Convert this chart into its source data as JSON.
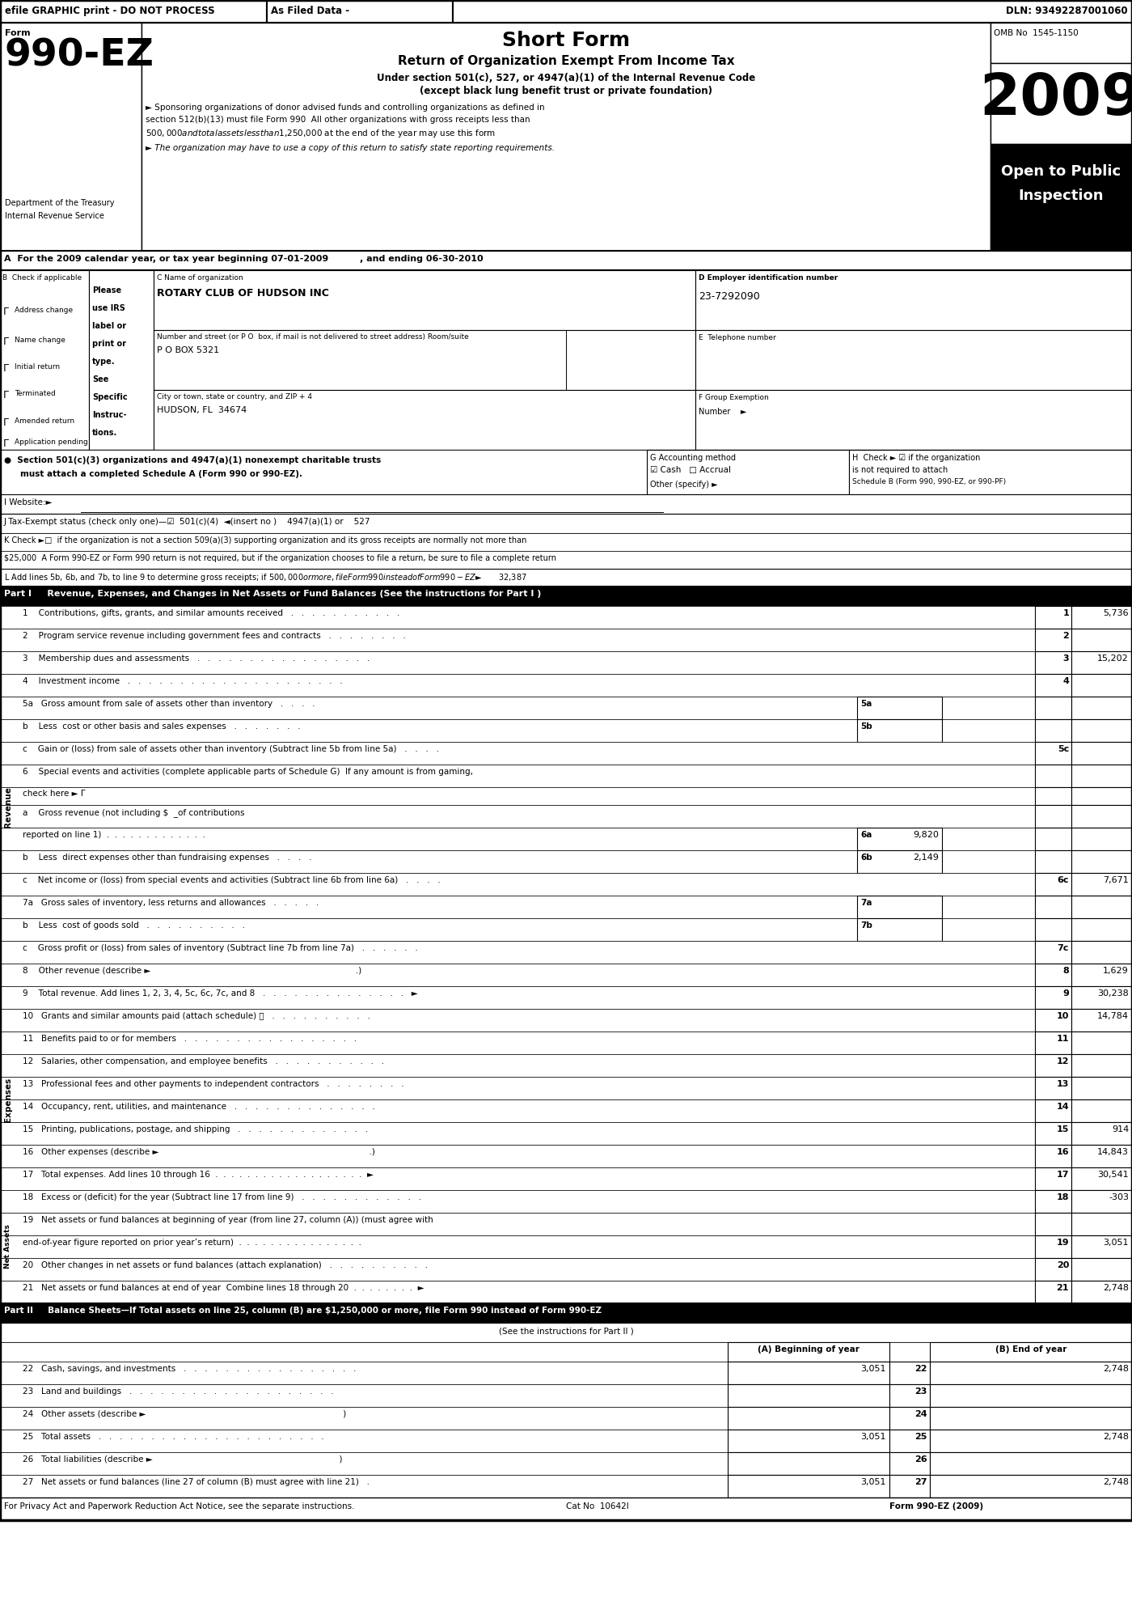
{
  "title": "Short Form",
  "form_number": "990-EZ",
  "year": "2009",
  "subtitle": "Return of Organization Exempt From Income Tax",
  "subtitle2": "Under section 501(c), 527, or 4947(a)(1) of the Internal Revenue Code",
  "subtitle3": "(except black lung benefit trust or private foundation)",
  "bullet1": "► Sponsoring organizations of donor advised funds and controlling organizations as defined in",
  "bullet1b": "section 512(b)(13) must file Form 990  All other organizations with gross receipts less than",
  "bullet1c": "$500,000 and total assets less than $1,250,000 at the end of the year may use this form",
  "bullet2": "► The organization may have to use a copy of this return to satisfy state reporting requirements.",
  "omb": "OMB No  1545-1150",
  "open_public": "Open to Public",
  "inspection": "Inspection",
  "dept": "Department of the Treasury",
  "irs": "Internal Revenue Service",
  "efile_left": "efile GRAPHIC print - DO NOT PROCESS",
  "efile_mid": "As Filed Data -",
  "efile_right": "DLN: 93492287001060",
  "section_A": "A  For the 2009 calendar year, or tax year beginning 07-01-2009          , and ending 06-30-2010",
  "org_name_label": "C Name of organization",
  "org_name": "ROTARY CLUB OF HUDSON INC",
  "ein_label": "D Employer identification number",
  "ein": "23-7292090",
  "address_label": "Number and street (or P O  box, if mail is not delivered to street address) Room/suite",
  "address": "P O BOX 5321",
  "phone_label": "E  Telephone number",
  "city_label": "City or town, state or country, and ZIP + 4",
  "city": "HUDSON, FL  34674",
  "group_label": "F Group Exemption",
  "group_number": "Number    ►",
  "check_b": "B  Check if applicable",
  "please_use": "Please",
  "use_irs": "use IRS",
  "label_or": "label or",
  "print_or": "print or",
  "type_": "type.",
  "see_": "See",
  "specific": "Specific",
  "instruc": "Instruc-",
  "tions": "tions.",
  "cb_address": "Address change",
  "cb_name": "Name change",
  "cb_initial": "Initial return",
  "cb_terminated": "Terminated",
  "cb_amended": "Amended return",
  "cb_application": "Application pending",
  "accounting_label": "G Accounting method",
  "accounting_cash": "☑ Cash",
  "accounting_accrual": "□ Accrual",
  "accounting_other": "Other (specify) ►",
  "website_label": "I Website:►",
  "h_check": "H  Check ► ☑ if the organization",
  "h_check2": "is not required to attach",
  "h_check3": "Schedule B (Form 990, 990-EZ, or 990-PF)",
  "j_label": "J Tax-Exempt status (check only one)—☑  501(c)(4)  ◄(insert no )    4947(a)(1) or    527",
  "k_label": "K Check ►□  if the organization is not a section 509(a)(3) supporting organization and its gross receipts are normally not more than",
  "k_label2": "$25,000  A Form 990-EZ or Form 990 return is not required, but if the organization chooses to file a return, be sure to file a complete return",
  "l_label": "L Add lines 5b, 6b, and 7b, to line 9 to determine gross receipts; if $500,000 or more, file Form 990 instead of Form 990-EZ         ► $       32,387",
  "part1_title": "Part I     Revenue, Expenses, and Changes in Net Assets or Fund Balances (See the instructions for Part I )",
  "line1_label": "1    Contributions, gifts, grants, and similar amounts received   .   .   .   .   .   .   .   .   .   .   .",
  "line1_val": "5,736",
  "line2_label": "2    Program service revenue including government fees and contracts   .   .   .   .   .   .   .   .",
  "line2_val": "",
  "line3_label": "3    Membership dues and assessments   .   .   .   .   .   .   .   .   .   .   .   .   .   .   .   .   .",
  "line3_val": "15,202",
  "line4_label": "4    Investment income   .   .   .   .   .   .   .   .   .   .   .   .   .   .   .   .   .   .   .   .   .",
  "line4_val": "",
  "line5a_label": "5a   Gross amount from sale of assets other than inventory   .   .   .   .",
  "line5b_label": "b    Less  cost or other basis and sales expenses   .   .   .   .   .   .   .",
  "line5c_label": "c    Gain or (loss) from sale of assets other than inventory (Subtract line 5b from line 5a)   .   .   .   .",
  "line6_label": "6    Special events and activities (complete applicable parts of Schedule G)  If any amount is from gaming,",
  "line6_label2": "check here ► Γ",
  "line6a_label": "a    Gross revenue (not including $  _of contributions",
  "line6a_label2": "reported on line 1)  .  .  .  .  .  .  .  .  .  .  .  .  .",
  "line6a_val": "9,820",
  "line6b_label": "b    Less  direct expenses other than fundraising expenses   .   .   .   .",
  "line6b_val": "2,149",
  "line6c_label": "c    Net income or (loss) from special events and activities (Subtract line 6b from line 6a)   .   .   .   .",
  "line6c_val": "7,671",
  "line7a_label": "7a   Gross sales of inventory, less returns and allowances   .   .   .   .   .",
  "line7b_label": "b    Less  cost of goods sold   .   .   .   .   .   .   .   .   .   .",
  "line7c_label": "c    Gross profit or (loss) from sales of inventory (Subtract line 7b from line 7a)   .   .   .   .   .   .",
  "line8_label": "8    Other revenue (describe ►                                                                              .)",
  "line8_val": "1,629",
  "line9_label": "9    Total revenue. Add lines 1, 2, 3, 4, 5c, 6c, 7c, and 8   .   .   .   .   .   .   .   .   .   .   .   .   .   .   ►",
  "line9_val": "30,238",
  "line10_label": "10   Grants and similar amounts paid (attach schedule) 📥   .   .   .   .   .   .   .   .   .   .",
  "line10_val": "14,784",
  "line11_label": "11   Benefits paid to or for members   .   .   .   .   .   .   .   .   .   .   .   .   .   .   .   .   .",
  "line11_val": "",
  "line12_label": "12   Salaries, other compensation, and employee benefits   .   .   .   .   .   .   .   .   .   .   .",
  "line12_val": "",
  "line13_label": "13   Professional fees and other payments to independent contractors   .   .   .   .   .   .   .   .",
  "line13_val": "",
  "line14_label": "14   Occupancy, rent, utilities, and maintenance   .   .   .   .   .   .   .   .   .   .   .   .   .   .",
  "line14_val": "",
  "line15_label": "15   Printing, publications, postage, and shipping   .   .   .   .   .   .   .   .   .   .   .   .   .",
  "line15_val": "914",
  "line16_label": "16   Other expenses (describe ►                                                                                .)",
  "line16_val": "14,843",
  "line17_label": "17   Total expenses. Add lines 10 through 16  .  .  .  .  .  .  .  .  .  .  .  .  .  .  .  .  .  .  .  ►",
  "line17_val": "30,541",
  "line18_label": "18   Excess or (deficit) for the year (Subtract line 17 from line 9)   .   .   .   .   .   .   .   .   .   .   .   .",
  "line18_val": "-303",
  "line19_label": "19   Net assets or fund balances at beginning of year (from line 27, column (A)) (must agree with",
  "line19_label2": "end-of-year figure reported on prior year’s return)  .  .  .  .  .  .  .  .  .  .  .  .  .  .  .  .",
  "line19_val": "3,051",
  "line20_label": "20   Other changes in net assets or fund balances (attach explanation)   .   .   .   .   .   .   .   .   .   .",
  "line20_val": "",
  "line21_label": "21   Net assets or fund balances at end of year  Combine lines 18 through 20  .  .  .  .  .  .  .  .  ►",
  "line21_val": "2,748",
  "part2_title": "Part II     Balance Sheets—If Total assets on line 25, column (B) are $1,250,000 or more, file Form 990 instead of Form 990-EZ",
  "part2_sub": "(See the instructions for Part II )",
  "col_a": "(A) Beginning of year",
  "col_b": "(B) End of year",
  "line22_label": "22   Cash, savings, and investments   .   .   .   .   .   .   .   .   .   .   .   .   .   .   .   .   .",
  "line22_a": "3,051",
  "line22_b": "2,748",
  "line23_label": "23   Land and buildings   .   .   .   .   .   .   .   .   .   .   .   .   .   .   .   .   .   .   .   .",
  "line23_a": "",
  "line23_b": "",
  "line24_label": "24   Other assets (describe ►                                                                           )",
  "line24_a": "",
  "line24_b": "",
  "line25_label": "25   Total assets   .   .   .   .   .   .   .   .   .   .   .   .   .   .   .   .   .   .   .   .   .   .",
  "line25_a": "3,051",
  "line25_b": "2,748",
  "line26_label": "26   Total liabilities (describe ►                                                                       )",
  "line26_a": "",
  "line26_b": "",
  "line27_label": "27   Net assets or fund balances (line 27 of column (B) must agree with line 21)   .",
  "line27_a": "3,051",
  "line27_b": "2,748",
  "footer1": "For Privacy Act and Paperwork Reduction Act Notice, see the separate instructions.",
  "footer2": "Cat No  10642I",
  "footer3": "Form 990-EZ (2009)",
  "revenue_label": "Revenue",
  "expenses_label": "Expenses",
  "net_assets_label": "Net Assets"
}
